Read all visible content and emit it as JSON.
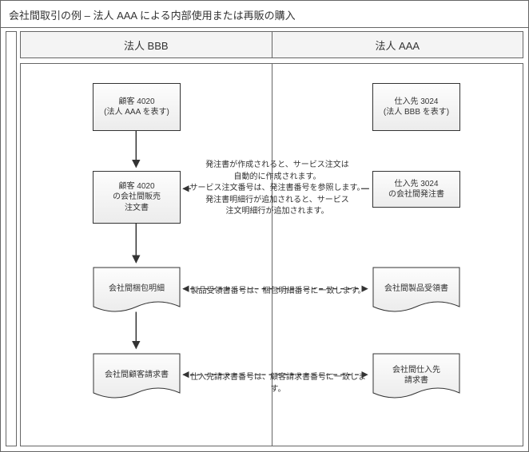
{
  "title": "会社間取引の例 – 法人 AAA による内部使用または再販の購入",
  "columns": {
    "left": "法人 BBB",
    "right": "法人 AAA"
  },
  "nodes": {
    "l1": "顧客 4020\n(法人 AAA を表す)",
    "r1": "仕入先 3024\n(法人 BBB を表す)",
    "l2": "顧客 4020\nの会社間販売\n注文書",
    "r2": "仕入先 3024\nの会社間発注書",
    "l3": "会社間梱包明細",
    "r3": "会社間製品受領書",
    "l4": "会社間顧客請求書",
    "r4": "会社間仕入先\n請求書"
  },
  "annotations": {
    "a1": "発注書が作成されると、サービス注文は\n自動的に作成されます。\nサービス注文番号は、発注書番号を参照します。\n発注書明細行が追加されると、サービス\n注文明細行が追加されます。",
    "a2": "製品受領書番号は、梱包明細番号に一致します。",
    "a3": "仕入先請求書番号は、顧客請求書番号に一致します。"
  },
  "colors": {
    "border": "#666666",
    "text": "#333333",
    "node_grad_top": "#fdfdfd",
    "node_grad_bot": "#ececec",
    "header_bg": "#f4f4f4",
    "bg": "#ffffff"
  },
  "type": "flowchart"
}
